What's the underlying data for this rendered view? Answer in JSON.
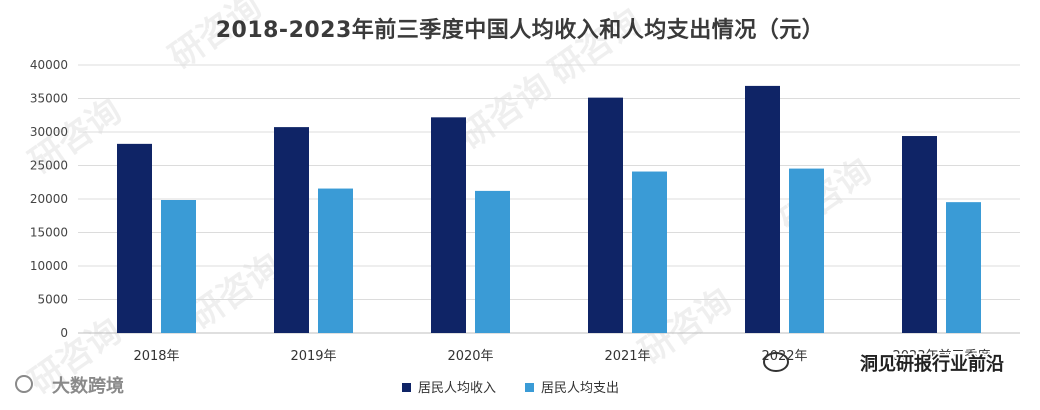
{
  "chart_data": {
    "type": "bar",
    "title": "2018-2023年前三季度中国人均收入和人均支出情况（元）",
    "categories": [
      "2018年",
      "2019年",
      "2020年",
      "2021年",
      "2022年",
      "2023年前三季度"
    ],
    "series": [
      {
        "name": "居民人均收入",
        "color": "#0f2466",
        "values": [
          28230,
          30730,
          32190,
          35130,
          36880,
          29400
        ]
      },
      {
        "name": "居民人均支出",
        "color": "#3a9bd6",
        "values": [
          19850,
          21560,
          21210,
          24100,
          24540,
          19530
        ]
      }
    ],
    "ylim": [
      0,
      40000
    ],
    "yticks": [
      0,
      5000,
      10000,
      15000,
      20000,
      25000,
      30000,
      35000,
      40000
    ],
    "grid": true,
    "legend_position": "bottom"
  },
  "footer": {
    "left_brand": "大数跨境",
    "right_brand": "洞见研报行业前沿"
  },
  "watermark": "研咨询"
}
